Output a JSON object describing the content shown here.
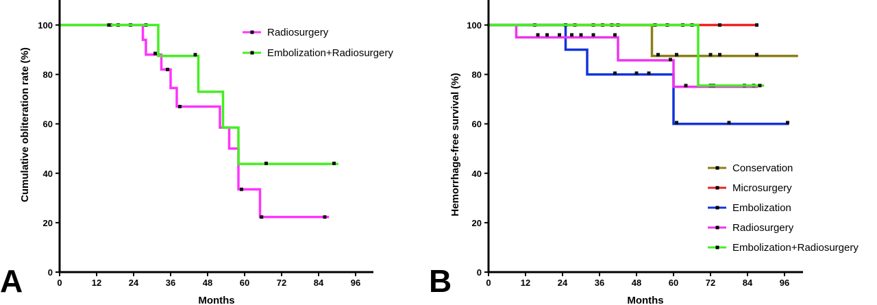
{
  "chart_data": [
    {
      "type": "line",
      "panel": "A",
      "xlabel": "Months",
      "ylabel": "Cumulative obliteration rate (%)",
      "xlim": [
        0,
        100
      ],
      "ylim": [
        0,
        110
      ],
      "xticks": [
        0,
        12,
        24,
        36,
        48,
        60,
        72,
        84,
        96
      ],
      "yticks": [
        0,
        20,
        40,
        60,
        80,
        100
      ],
      "legend_position": "top-right",
      "series": [
        {
          "name": "Radiosurgery",
          "color": "#ff33ff",
          "steps": [
            [
              0,
              100
            ],
            [
              27,
              94
            ],
            [
              28,
              88
            ],
            [
              32,
              88
            ],
            [
              33,
              82
            ],
            [
              35,
              82
            ],
            [
              36,
              74.5
            ],
            [
              38,
              67
            ],
            [
              52,
              58.5
            ],
            [
              55,
              50
            ],
            [
              58,
              33.5
            ],
            [
              65,
              22.3
            ],
            [
              87,
              22.3
            ]
          ],
          "censored": [
            [
              16.5,
              100
            ],
            [
              19,
              100
            ],
            [
              23,
              100
            ],
            [
              28,
              100
            ],
            [
              35,
              82
            ],
            [
              39,
              67
            ],
            [
              59,
              33.5
            ],
            [
              65.5,
              22.3
            ],
            [
              86,
              22.3
            ]
          ]
        },
        {
          "name": "Embolization+Radiosurgery",
          "color": "#44ee22",
          "steps": [
            [
              0,
              100
            ],
            [
              32,
              87.5
            ],
            [
              45,
              73
            ],
            [
              53,
              58.5
            ],
            [
              58,
              43.8
            ],
            [
              90,
              43.8
            ]
          ],
          "censored": [
            [
              16,
              100
            ],
            [
              31,
              88.5
            ],
            [
              44,
              88
            ],
            [
              67,
              44
            ],
            [
              89,
              44
            ]
          ]
        }
      ]
    },
    {
      "type": "line",
      "panel": "B",
      "xlabel": "Months",
      "ylabel": "Hemorrhage-free survival (%)",
      "xlim": [
        0,
        100
      ],
      "ylim": [
        0,
        110
      ],
      "xticks": [
        0,
        12,
        24,
        36,
        48,
        60,
        72,
        84,
        96
      ],
      "yticks": [
        0,
        20,
        40,
        60,
        80,
        100
      ],
      "legend_position": "bottom-right",
      "series": [
        {
          "name": "Conservation",
          "color": "#8a7e16",
          "steps": [
            [
              0,
              100
            ],
            [
              53,
              87.5
            ],
            [
              100,
              87.5
            ]
          ],
          "censored": [
            [
              15,
              100
            ],
            [
              28,
              100
            ],
            [
              34,
              100
            ],
            [
              37,
              100
            ],
            [
              40,
              100
            ],
            [
              42,
              100
            ],
            [
              55,
              88
            ],
            [
              61,
              88
            ],
            [
              72,
              88
            ],
            [
              75,
              88
            ],
            [
              87,
              88
            ]
          ]
        },
        {
          "name": "Microsurgery",
          "color": "#ee2222",
          "steps": [
            [
              0,
              100
            ],
            [
              87,
              100
            ]
          ],
          "censored": [
            [
              54,
              100
            ],
            [
              58,
              100
            ],
            [
              63,
              100
            ],
            [
              66,
              100
            ],
            [
              75,
              100
            ],
            [
              87,
              100
            ]
          ]
        },
        {
          "name": "Embolization",
          "color": "#1133dd",
          "steps": [
            [
              0,
              100
            ],
            [
              25,
              90
            ],
            [
              32,
              80
            ],
            [
              60,
              60
            ],
            [
              97,
              60
            ]
          ],
          "censored": [
            [
              25,
              100
            ],
            [
              41,
              80.5
            ],
            [
              48,
              80.5
            ],
            [
              52,
              80.5
            ],
            [
              61,
              60.5
            ],
            [
              78,
              60.5
            ],
            [
              97,
              60.5
            ]
          ]
        },
        {
          "name": "Radiosurgery",
          "color": "#ee33ee",
          "steps": [
            [
              0,
              100
            ],
            [
              9,
              95
            ],
            [
              42,
              85.7
            ],
            [
              60,
              75
            ],
            [
              87,
              75
            ]
          ],
          "censored": [
            [
              16,
              96
            ],
            [
              19,
              96
            ],
            [
              23,
              96
            ],
            [
              27,
              96
            ],
            [
              30,
              96
            ],
            [
              34,
              96
            ],
            [
              41,
              96
            ],
            [
              59,
              86
            ],
            [
              64,
              75.5
            ],
            [
              72,
              75.5
            ],
            [
              73,
              75.5
            ],
            [
              83,
              75.5
            ],
            [
              86,
              75.5
            ]
          ]
        },
        {
          "name": "Embolization+Radiosurgery",
          "color": "#44ee22",
          "steps": [
            [
              0,
              100
            ],
            [
              68,
              75.5
            ],
            [
              89,
              75.5
            ]
          ],
          "censored": [
            [
              88,
              75.5
            ]
          ]
        }
      ]
    }
  ]
}
